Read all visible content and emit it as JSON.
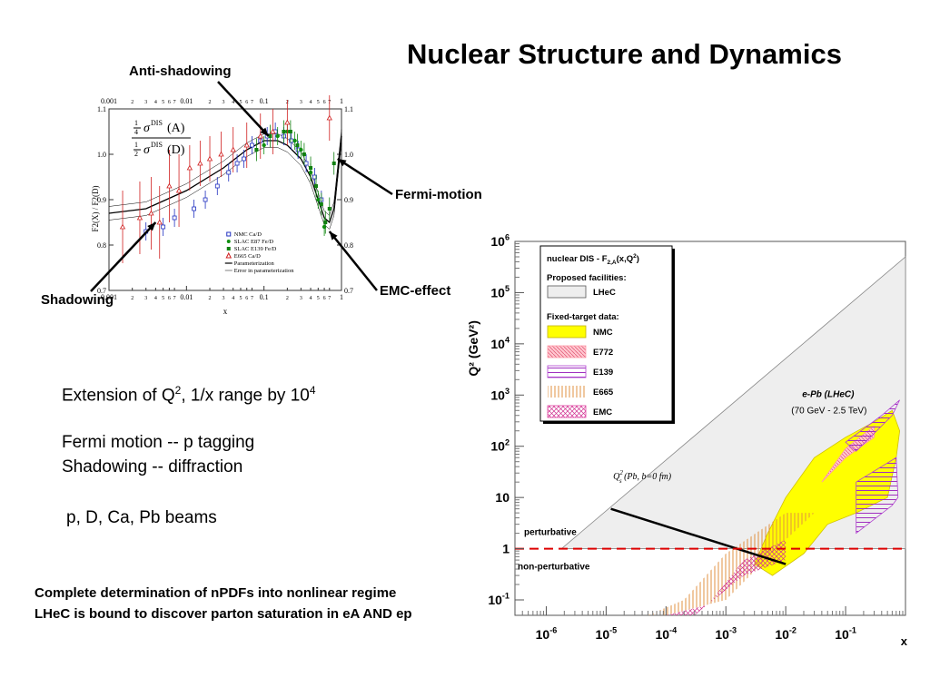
{
  "title": "Nuclear Structure and Dynamics",
  "bullets": {
    "line1_main": "Extension of Q",
    "line1_sup1": "2",
    "line1_mid": ", 1/x range by 10",
    "line1_sup2": "4",
    "line2": "Fermi motion -- p tagging",
    "line3": "Shadowing -- diffraction",
    "line4": "p, D, Ca, Pb beams"
  },
  "conclusion": {
    "line1": "Complete determination of nPDFs  into nonlinear regime",
    "line2": "LHeC is bound to discover parton saturation in eA AND ep"
  },
  "annotations": {
    "anti_shadowing": "Anti-shadowing",
    "fermi_motion": "Fermi-motion",
    "emc_effect": "EMC-effect",
    "shadowing": "Shadowing"
  },
  "colors": {
    "lhec": "#eeeeee",
    "nmc": "#ffff00",
    "e772": "#ff9aa8",
    "e139": "#b040d0",
    "e665": "#f0b060",
    "emc": "#e040a0",
    "qs_line": "#000000",
    "q1_line": "#dd0000"
  },
  "chart_data": [
    {
      "type": "scatter",
      "xscale": "log",
      "xlim": [
        0.001,
        1
      ],
      "ylim": [
        0.7,
        1.1
      ],
      "xlabel": "x",
      "ylabel": "F2(X) / F2(D)",
      "ratio_label": {
        "num_a": "1",
        "num_b": "4",
        "num_sigma": "σ",
        "num_sup": "DIS",
        "num_arg": "(A)",
        "den_a": "1",
        "den_b": "2",
        "den_sigma": "σ",
        "den_sup": "DIS",
        "den_arg": "(D)"
      },
      "xticks_major": [
        "0.001",
        "0.01",
        "0.1",
        "1"
      ],
      "xticks_minor": [
        "2",
        "3",
        "4",
        "5",
        "6",
        "7"
      ],
      "yticks": [
        "0.7",
        "0.8",
        "0.9",
        "1.0",
        "1.1"
      ],
      "legend": [
        {
          "label": "NMC Ca/D",
          "marker": "open-square",
          "color": "#2030c0"
        },
        {
          "label": "SLAC E87 Fe/D",
          "marker": "filled-circle",
          "color": "#109010"
        },
        {
          "label": "SLAC E139 Fe/D",
          "marker": "filled-square",
          "color": "#108010"
        },
        {
          "label": "E665 Ca/D",
          "marker": "open-triangle",
          "color": "#d02020"
        },
        {
          "label": "Parameterization",
          "marker": "solid-line",
          "color": "#000000"
        },
        {
          "label": "Error in parameterization",
          "marker": "thin-line",
          "color": "#000000"
        }
      ],
      "series": [
        {
          "name": "NMC Ca/D",
          "x": [
            0.003,
            0.005,
            0.007,
            0.0125,
            0.0175,
            0.025,
            0.035,
            0.045,
            0.055,
            0.07,
            0.09,
            0.11,
            0.14,
            0.18,
            0.225,
            0.275,
            0.35,
            0.45,
            0.55
          ],
          "y": [
            0.83,
            0.84,
            0.86,
            0.88,
            0.9,
            0.93,
            0.96,
            0.98,
            0.99,
            1.02,
            1.03,
            1.04,
            1.05,
            1.04,
            1.03,
            1.01,
            0.98,
            0.95,
            0.9
          ]
        },
        {
          "name": "SLAC E87 Fe/D",
          "x": [
            0.1,
            0.15,
            0.2,
            0.25,
            0.3,
            0.4,
            0.5,
            0.6
          ],
          "y": [
            1.02,
            1.04,
            1.05,
            1.03,
            1.01,
            0.96,
            0.9,
            0.84
          ]
        },
        {
          "name": "SLAC E139 Fe/D",
          "x": [
            0.08,
            0.12,
            0.18,
            0.22,
            0.27,
            0.33,
            0.4,
            0.47,
            0.55,
            0.62,
            0.7,
            0.8
          ],
          "y": [
            1.01,
            1.04,
            1.05,
            1.05,
            1.02,
            1.0,
            0.97,
            0.93,
            0.89,
            0.85,
            0.88,
            0.98
          ]
        },
        {
          "name": "E665 Ca/D",
          "x": [
            0.0015,
            0.0025,
            0.0035,
            0.0045,
            0.006,
            0.008,
            0.011,
            0.015,
            0.02,
            0.028,
            0.04,
            0.06,
            0.09,
            0.13,
            0.2,
            0.7
          ],
          "y": [
            0.84,
            0.86,
            0.87,
            0.85,
            0.93,
            0.92,
            0.97,
            0.98,
            0.99,
            1.0,
            1.01,
            1.02,
            1.04,
            1.05,
            1.07,
            1.08
          ]
        },
        {
          "name": "Parameterization",
          "x": [
            0.001,
            0.003,
            0.01,
            0.03,
            0.06,
            0.1,
            0.15,
            0.2,
            0.3,
            0.4,
            0.5,
            0.6,
            0.7,
            0.8,
            1.0
          ],
          "y": [
            0.87,
            0.88,
            0.92,
            0.97,
            1.01,
            1.03,
            1.03,
            1.02,
            0.99,
            0.95,
            0.9,
            0.86,
            0.85,
            0.88,
            1.04
          ]
        }
      ]
    },
    {
      "type": "area",
      "xscale": "log",
      "yscale": "log",
      "xlim": [
        3e-07,
        1
      ],
      "ylim": [
        0.05,
        1000000
      ],
      "xlabel": "x",
      "ylabel": "Q² (GeV²)",
      "xticks": [
        {
          "base": "10",
          "exp": "-6"
        },
        {
          "base": "10",
          "exp": "-5"
        },
        {
          "base": "10",
          "exp": "-4"
        },
        {
          "base": "10",
          "exp": "-3"
        },
        {
          "base": "10",
          "exp": "-2"
        },
        {
          "base": "10",
          "exp": "-1"
        }
      ],
      "yticks": [
        {
          "base": "10",
          "exp": "6",
          "value": 1000000
        },
        {
          "base": "10",
          "exp": "5",
          "value": 100000
        },
        {
          "base": "10",
          "exp": "4",
          "value": 10000
        },
        {
          "base": "10",
          "exp": "3",
          "value": 1000
        },
        {
          "base": "10",
          "exp": "2",
          "value": 100
        },
        {
          "base": "10",
          "exp": "",
          "value": 10
        },
        {
          "base": "1",
          "exp": "",
          "value": 1
        },
        {
          "base": "10",
          "exp": "-1",
          "value": 0.1
        }
      ],
      "legend": {
        "title_main": "nuclear DIS - F",
        "title_sub": "2,A",
        "title_rest": "(x,Q",
        "title_sup": "2",
        "title_end": ")",
        "proposed": "Proposed facilities:",
        "fixed": "Fixed-target data:",
        "entries": [
          {
            "label": "LHeC",
            "key": "lhec"
          },
          {
            "label": "NMC",
            "key": "nmc"
          },
          {
            "label": "E772",
            "key": "e772"
          },
          {
            "label": "E139",
            "key": "e139"
          },
          {
            "label": "E665",
            "key": "e665"
          },
          {
            "label": "EMC",
            "key": "emc"
          }
        ]
      },
      "regions": [
        {
          "name": "LHeC",
          "x": [
            1.8e-06,
            1,
            1,
            1.8e-06
          ],
          "q2": [
            1,
            1,
            500000,
            1
          ]
        },
        {
          "name": "NMC",
          "x": [
            0.003,
            0.006,
            0.02,
            0.05,
            0.15,
            0.5,
            0.7,
            0.8,
            0.6,
            0.3,
            0.1,
            0.03,
            0.01,
            0.005
          ],
          "q2": [
            0.5,
            0.3,
            0.8,
            3,
            5,
            10,
            60,
            200,
            500,
            300,
            150,
            60,
            10,
            2
          ]
        },
        {
          "name": "E772",
          "x": [
            0.04,
            0.1,
            0.3,
            0.3,
            0.1
          ],
          "q2": [
            20,
            60,
            150,
            250,
            90
          ]
        },
        {
          "name": "E139",
          "x": [
            0.1,
            0.4,
            0.8,
            0.6,
            0.15
          ],
          "q2": [
            120,
            400,
            800,
            400,
            80
          ]
        },
        {
          "name": "E665",
          "x": [
            5e-05,
            0.0001,
            0.001,
            0.01,
            0.03,
            0.01,
            0.001,
            0.0002
          ],
          "q2": [
            0.02,
            0.02,
            0.1,
            1.5,
            5,
            5,
            0.8,
            0.1
          ]
        },
        {
          "name": "EMC",
          "x": [
            0.0001,
            0.0003,
            0.002,
            0.01,
            0.01,
            0.002,
            0.0005
          ],
          "q2": [
            0.02,
            0.02,
            0.3,
            0.6,
            1.5,
            0.6,
            0.08
          ]
        },
        {
          "name": "EMC-high",
          "x": [
            0.15,
            0.6,
            0.75,
            0.7,
            0.15
          ],
          "q2": [
            2,
            7,
            10,
            60,
            20
          ]
        }
      ],
      "lines": [
        {
          "name": "Q_s^2 (Pb, b=0 fm)",
          "x": [
            1.2e-05,
            0.01
          ],
          "q2": [
            6,
            0.5
          ]
        },
        {
          "name": "Q2 = 1",
          "x": [
            3e-07,
            1
          ],
          "q2": [
            1,
            1
          ]
        }
      ],
      "labels": {
        "epb": "e-Pb (LHeC)",
        "energy": "(70 GeV - 2.5 TeV)",
        "qs": "Q",
        "qs_sub": "s",
        "qs_sup": "2",
        "qs_rest": " (Pb, b=0 fm)",
        "pert": "perturbative",
        "nonpert": "non-perturbative"
      }
    }
  ]
}
